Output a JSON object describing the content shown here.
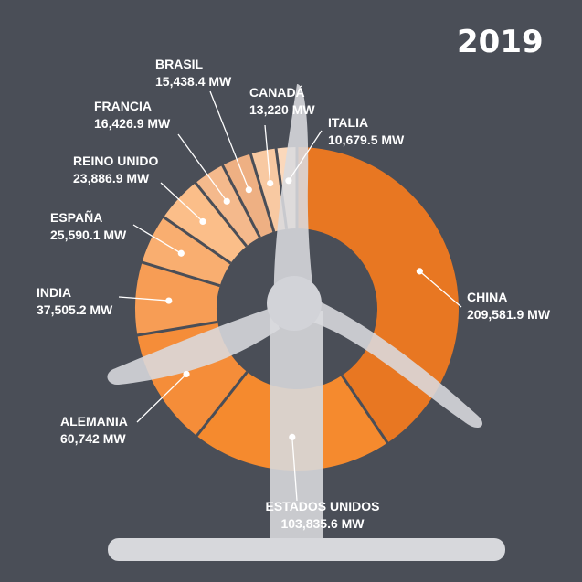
{
  "year": "2019",
  "chart_data": {
    "type": "pie",
    "title": "2019",
    "categories": [
      "CHINA",
      "ESTADOS UNIDOS",
      "ALEMANIA",
      "INDIA",
      "ESPAÑA",
      "REINO UNIDO",
      "FRANCIA",
      "BRASIL",
      "CANADÁ",
      "ITALIA"
    ],
    "values": [
      209581.9,
      103835.6,
      60742,
      37505.2,
      25590.1,
      23886.9,
      16426.9,
      15438.4,
      13220,
      10679.5
    ],
    "value_labels": [
      "209,581.9 MW",
      "103,835.6 MW",
      "60,742 MW",
      "37,505.2 MW",
      "25,590.1 MW",
      "23,886.9 MW",
      "16,426.9 MW",
      "15,438.4 MW",
      "13,220 MW",
      "10,679.5 MW"
    ],
    "unit": "MW",
    "colors": [
      "#e87722",
      "#f58a2e",
      "#f58d39",
      "#f79d55",
      "#f9ae70",
      "#fbbe89",
      "#f4b98c",
      "#eeb083",
      "#f8c9a2",
      "#fbd8bb"
    ],
    "donut": true,
    "start_angle_deg": 0,
    "direction": "clockwise"
  },
  "colors": {
    "background": "#4a4e57",
    "turbine": "#d7d8dc",
    "divider": "#4a4e57",
    "text": "#ffffff"
  }
}
